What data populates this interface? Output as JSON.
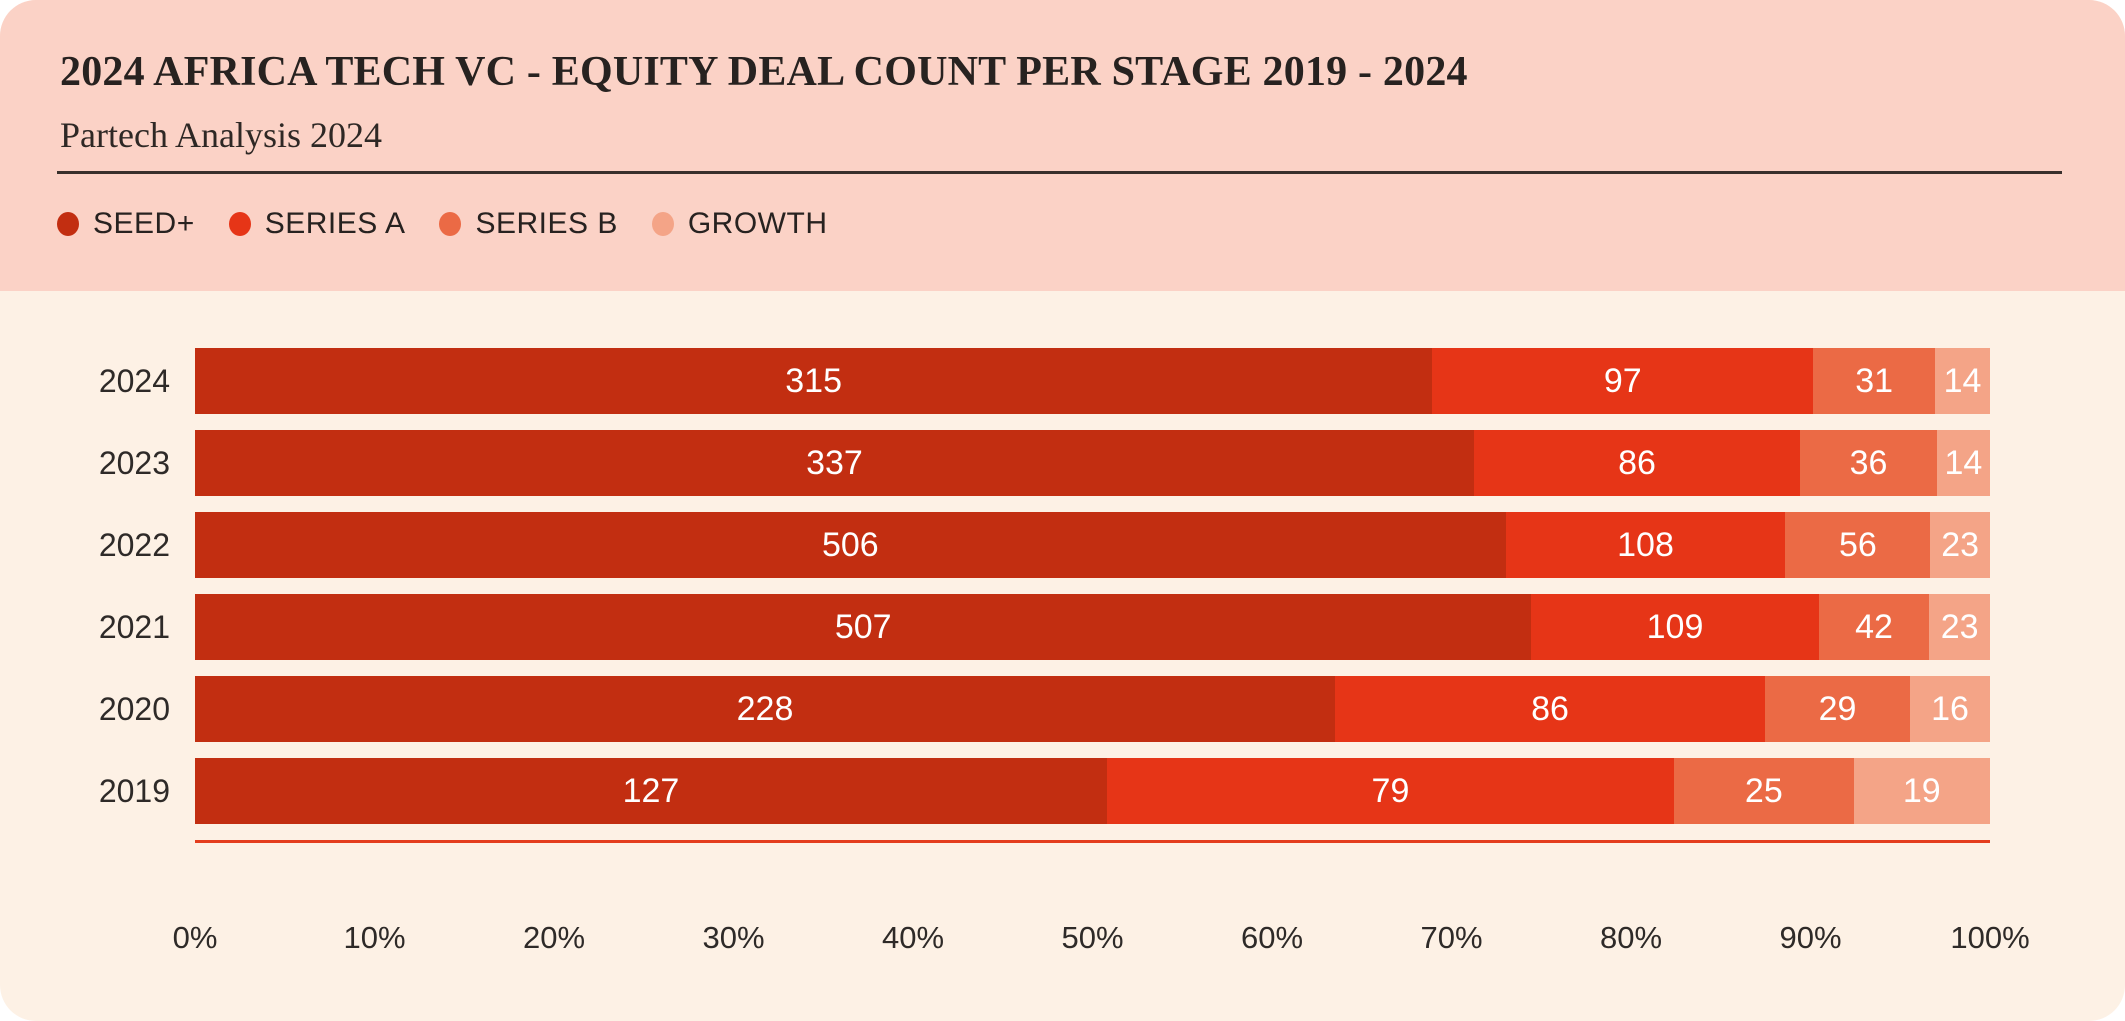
{
  "header": {
    "title": "2024 AFRICA TECH VC - EQUITY DEAL COUNT PER STAGE 2019 - 2024",
    "subtitle": "Partech Analysis 2024"
  },
  "colors": {
    "header_background": "#fbd2c6",
    "body_background": "#fdf1e5",
    "title_text": "#272220",
    "label_text": "#2e2a28",
    "bar_value_text": "#ffffff",
    "axis_line": "#e43d1e",
    "seed_plus": "#c22e11",
    "series_a": "#e63517",
    "series_b": "#eb6a45",
    "growth": "#f4a487"
  },
  "chart_data": {
    "type": "bar",
    "variant": "horizontal-stacked-100pct",
    "title": "2024 AFRICA TECH VC - EQUITY DEAL COUNT PER STAGE 2019 - 2024",
    "subtitle": "Partech Analysis 2024",
    "categories": [
      "2024",
      "2023",
      "2022",
      "2021",
      "2020",
      "2019"
    ],
    "series": [
      {
        "name": "SEED+",
        "color": "#c22e11",
        "values": [
          315,
          337,
          506,
          507,
          228,
          127
        ]
      },
      {
        "name": "SERIES A",
        "color": "#e63517",
        "values": [
          97,
          86,
          108,
          109,
          86,
          79
        ]
      },
      {
        "name": "SERIES B",
        "color": "#eb6a45",
        "values": [
          31,
          36,
          56,
          42,
          29,
          25
        ]
      },
      {
        "name": "GROWTH",
        "color": "#f4a487",
        "values": [
          14,
          14,
          23,
          23,
          16,
          19
        ]
      }
    ],
    "x_ticks": [
      "0%",
      "10%",
      "20%",
      "30%",
      "40%",
      "50%",
      "60%",
      "70%",
      "80%",
      "90%",
      "100%"
    ],
    "xlim": [
      0,
      100
    ],
    "xlabel": "",
    "ylabel": "",
    "grid": false,
    "legend_position": "top-left-under-subtitle",
    "value_labels": "inside-center-white"
  }
}
